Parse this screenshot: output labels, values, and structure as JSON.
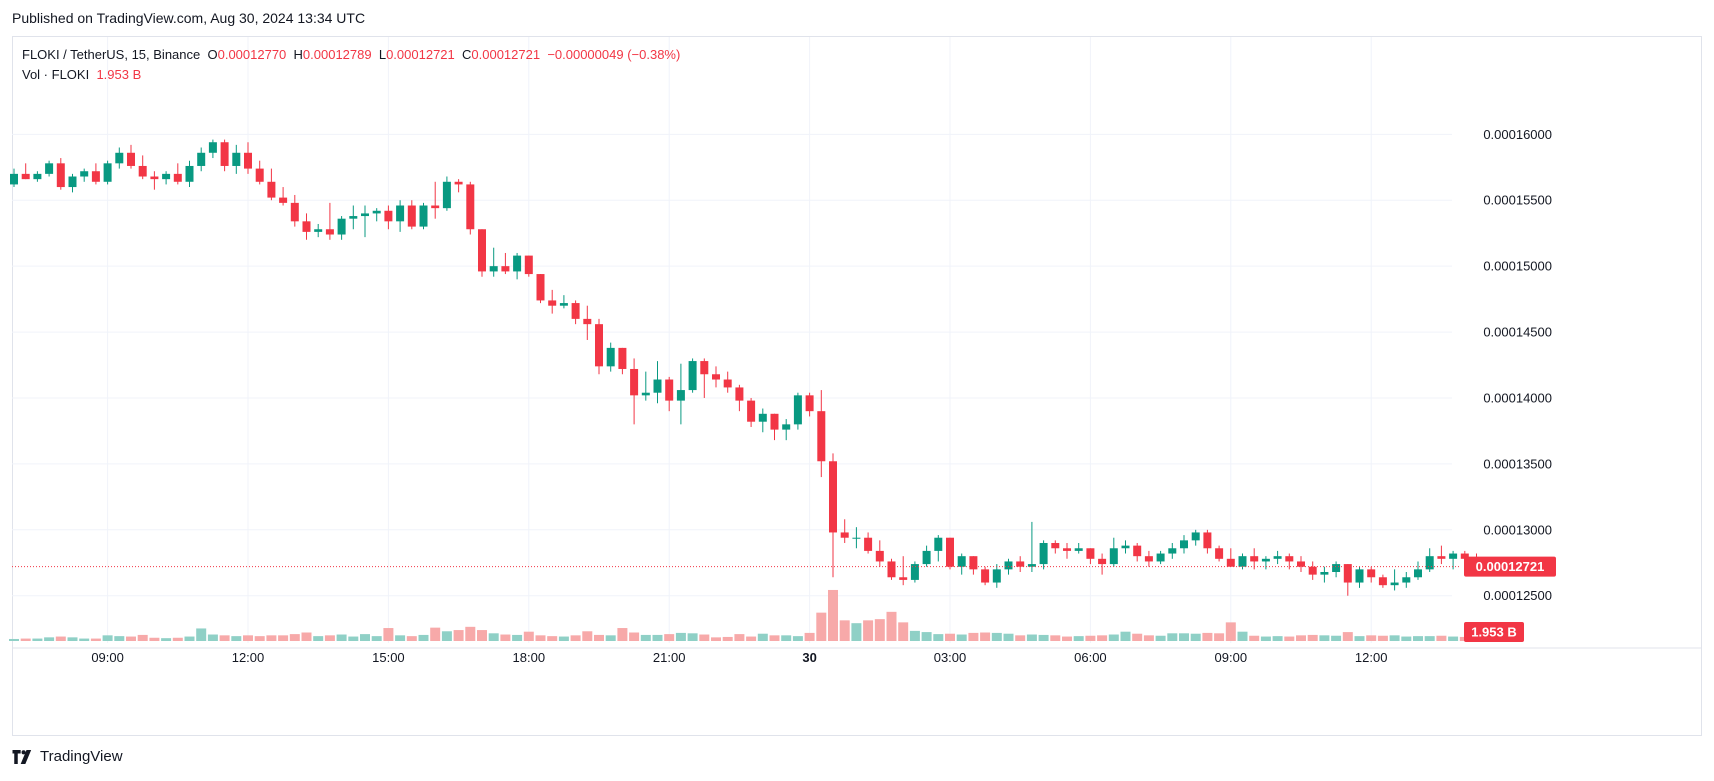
{
  "header": {
    "published": "Published on TradingView.com, Aug 30, 2024 13:34 UTC"
  },
  "legend": {
    "symbol": "FLOKI / TetherUS, 15, Binance",
    "o_label": "O",
    "o_value": "0.00012770",
    "h_label": "H",
    "h_value": "0.00012789",
    "l_label": "L",
    "l_value": "0.00012721",
    "c_label": "C",
    "c_value": "0.00012721",
    "change": "−0.00000049 (−0.38%)",
    "vol_label": "Vol · FLOKI",
    "vol_value": "1.953 B"
  },
  "brand": {
    "logo_icon": "tradingview-logo-icon",
    "name": "TradingView"
  },
  "colors": {
    "up": "#089981",
    "down": "#f23645",
    "vol_up": "#8fd0c6",
    "vol_down": "#f7a9a9",
    "grid": "#f0f3fa",
    "text": "#131722"
  },
  "chart_data": {
    "type": "candlestick",
    "symbol": "FLOKI / TetherUS",
    "interval": "15",
    "exchange": "Binance",
    "y_ticks": [
      "0.00016000",
      "0.00015500",
      "0.00015000",
      "0.00014500",
      "0.00014000",
      "0.00013500",
      "0.00013000",
      "0.00012500"
    ],
    "ylim": [
      0.0001224,
      0.0001645
    ],
    "x_ticks": [
      {
        "label": "09:00",
        "bar": 8
      },
      {
        "label": "12:00",
        "bar": 20
      },
      {
        "label": "15:00",
        "bar": 32
      },
      {
        "label": "18:00",
        "bar": 44
      },
      {
        "label": "21:00",
        "bar": 56
      },
      {
        "label": "30",
        "bar": 68
      },
      {
        "label": "03:00",
        "bar": 80
      },
      {
        "label": "06:00",
        "bar": 92
      },
      {
        "label": "09:00",
        "bar": 104
      },
      {
        "label": "12:00",
        "bar": 116
      }
    ],
    "last_price": "0.00012721",
    "last_volume": "1.953 B",
    "grid": true,
    "candles": [
      [
        0.0001562,
        0.0001574,
        0.000156,
        0.000157,
        0.25
      ],
      [
        0.000157,
        0.0001578,
        0.0001566,
        0.0001566,
        0.3
      ],
      [
        0.0001566,
        0.0001572,
        0.0001564,
        0.000157,
        0.3
      ],
      [
        0.000157,
        0.000158,
        0.0001568,
        0.0001578,
        0.45
      ],
      [
        0.0001578,
        0.0001582,
        0.0001558,
        0.000156,
        0.55
      ],
      [
        0.000156,
        0.000157,
        0.0001556,
        0.0001568,
        0.45
      ],
      [
        0.0001568,
        0.0001574,
        0.0001564,
        0.0001572,
        0.3
      ],
      [
        0.0001572,
        0.0001578,
        0.0001562,
        0.0001564,
        0.3
      ],
      [
        0.0001564,
        0.000158,
        0.0001562,
        0.0001578,
        0.7
      ],
      [
        0.0001578,
        0.000159,
        0.0001574,
        0.0001586,
        0.6
      ],
      [
        0.0001586,
        0.0001592,
        0.0001574,
        0.0001576,
        0.55
      ],
      [
        0.0001576,
        0.0001584,
        0.0001566,
        0.0001568,
        0.75
      ],
      [
        0.0001568,
        0.0001572,
        0.0001558,
        0.0001566,
        0.4
      ],
      [
        0.0001566,
        0.0001572,
        0.0001562,
        0.000157,
        0.35
      ],
      [
        0.000157,
        0.0001578,
        0.0001562,
        0.0001564,
        0.4
      ],
      [
        0.0001564,
        0.000158,
        0.000156,
        0.0001576,
        0.55
      ],
      [
        0.0001576,
        0.000159,
        0.0001572,
        0.0001586,
        1.55
      ],
      [
        0.0001586,
        0.0001596,
        0.0001582,
        0.0001594,
        0.8
      ],
      [
        0.0001594,
        0.0001596,
        0.0001572,
        0.0001576,
        0.7
      ],
      [
        0.0001576,
        0.0001592,
        0.000157,
        0.0001586,
        0.6
      ],
      [
        0.0001586,
        0.0001594,
        0.000157,
        0.0001574,
        0.7
      ],
      [
        0.0001574,
        0.000158,
        0.0001562,
        0.0001564,
        0.6
      ],
      [
        0.0001564,
        0.0001574,
        0.000155,
        0.0001552,
        0.7
      ],
      [
        0.0001552,
        0.000156,
        0.0001546,
        0.0001548,
        0.7
      ],
      [
        0.0001548,
        0.0001554,
        0.000153,
        0.0001534,
        0.85
      ],
      [
        0.0001534,
        0.000154,
        0.000152,
        0.0001526,
        1.05
      ],
      [
        0.0001526,
        0.0001532,
        0.0001522,
        0.0001528,
        0.6
      ],
      [
        0.0001528,
        0.0001548,
        0.000152,
        0.0001524,
        0.7
      ],
      [
        0.0001524,
        0.0001538,
        0.000152,
        0.0001536,
        0.8
      ],
      [
        0.0001536,
        0.0001546,
        0.0001528,
        0.0001538,
        0.55
      ],
      [
        0.0001538,
        0.0001546,
        0.0001522,
        0.000154,
        0.85
      ],
      [
        0.000154,
        0.0001544,
        0.0001534,
        0.0001542,
        0.6
      ],
      [
        0.0001542,
        0.0001546,
        0.0001528,
        0.0001534,
        1.6
      ],
      [
        0.0001534,
        0.000155,
        0.0001526,
        0.0001546,
        0.7
      ],
      [
        0.0001546,
        0.000155,
        0.0001528,
        0.000153,
        0.6
      ],
      [
        0.000153,
        0.0001548,
        0.0001528,
        0.0001546,
        0.75
      ],
      [
        0.0001546,
        0.0001564,
        0.0001536,
        0.0001544,
        1.65
      ],
      [
        0.0001544,
        0.0001568,
        0.0001542,
        0.0001564,
        1.2
      ],
      [
        0.0001564,
        0.0001566,
        0.0001556,
        0.0001562,
        1.35
      ],
      [
        0.0001562,
        0.0001564,
        0.0001524,
        0.0001528,
        1.75
      ],
      [
        0.0001528,
        0.0001528,
        0.0001492,
        0.0001496,
        1.35
      ],
      [
        0.0001496,
        0.0001514,
        0.0001492,
        0.00015,
        0.95
      ],
      [
        0.00015,
        0.000151,
        0.0001494,
        0.0001496,
        0.8
      ],
      [
        0.0001496,
        0.000151,
        0.000149,
        0.0001508,
        0.75
      ],
      [
        0.0001508,
        0.0001508,
        0.0001492,
        0.0001494,
        1.15
      ],
      [
        0.0001494,
        0.0001494,
        0.0001472,
        0.0001474,
        0.7
      ],
      [
        0.0001474,
        0.0001482,
        0.0001464,
        0.000147,
        0.6
      ],
      [
        0.000147,
        0.0001478,
        0.0001468,
        0.0001472,
        0.55
      ],
      [
        0.0001472,
        0.0001474,
        0.0001456,
        0.000146,
        0.7
      ],
      [
        0.000146,
        0.000147,
        0.0001444,
        0.0001456,
        1.2
      ],
      [
        0.0001456,
        0.000146,
        0.0001418,
        0.0001424,
        0.75
      ],
      [
        0.0001424,
        0.0001442,
        0.000142,
        0.0001438,
        0.7
      ],
      [
        0.0001438,
        0.0001438,
        0.0001418,
        0.0001422,
        1.6
      ],
      [
        0.0001422,
        0.000143,
        0.000138,
        0.0001402,
        1.05
      ],
      [
        0.0001402,
        0.000142,
        0.0001398,
        0.0001404,
        0.75
      ],
      [
        0.0001404,
        0.0001428,
        0.0001396,
        0.0001414,
        0.75
      ],
      [
        0.0001414,
        0.0001416,
        0.000139,
        0.0001398,
        0.85
      ],
      [
        0.0001398,
        0.0001426,
        0.000138,
        0.0001406,
        1.0
      ],
      [
        0.0001406,
        0.000143,
        0.0001404,
        0.0001428,
        0.95
      ],
      [
        0.0001428,
        0.000143,
        0.00014,
        0.0001418,
        0.8
      ],
      [
        0.0001418,
        0.0001424,
        0.0001408,
        0.0001414,
        0.45
      ],
      [
        0.0001414,
        0.000142,
        0.0001404,
        0.0001408,
        0.5
      ],
      [
        0.0001408,
        0.000141,
        0.000139,
        0.0001398,
        0.85
      ],
      [
        0.0001398,
        0.00014,
        0.0001378,
        0.0001382,
        0.55
      ],
      [
        0.0001382,
        0.0001392,
        0.0001374,
        0.0001388,
        0.9
      ],
      [
        0.0001388,
        0.0001388,
        0.0001368,
        0.0001376,
        0.7
      ],
      [
        0.0001376,
        0.0001384,
        0.0001368,
        0.000138,
        0.7
      ],
      [
        0.000138,
        0.0001404,
        0.0001376,
        0.0001402,
        0.6
      ],
      [
        0.0001402,
        0.0001404,
        0.0001386,
        0.000139,
        1.0
      ],
      [
        0.000139,
        0.0001406,
        0.000134,
        0.0001352,
        3.5
      ],
      [
        0.0001352,
        0.0001358,
        0.0001264,
        0.0001298,
        6.3
      ],
      [
        0.0001298,
        0.0001308,
        0.000129,
        0.0001294,
        2.55
      ],
      [
        0.0001294,
        0.0001302,
        0.0001286,
        0.0001294,
        2.2
      ],
      [
        0.0001294,
        0.0001298,
        0.0001282,
        0.0001284,
        2.55
      ],
      [
        0.0001284,
        0.0001292,
        0.0001272,
        0.0001276,
        2.7
      ],
      [
        0.0001276,
        0.0001278,
        0.0001262,
        0.0001264,
        3.6
      ],
      [
        0.0001264,
        0.000128,
        0.0001258,
        0.0001262,
        2.3
      ],
      [
        0.0001262,
        0.0001276,
        0.000126,
        0.0001274,
        1.25
      ],
      [
        0.0001274,
        0.0001288,
        0.0001272,
        0.0001284,
        1.1
      ],
      [
        0.0001284,
        0.0001296,
        0.0001276,
        0.0001294,
        0.85
      ],
      [
        0.0001294,
        0.0001294,
        0.000127,
        0.0001272,
        0.9
      ],
      [
        0.0001272,
        0.0001282,
        0.0001266,
        0.000128,
        0.8
      ],
      [
        0.000128,
        0.000128,
        0.0001266,
        0.000127,
        1.0
      ],
      [
        0.000127,
        0.0001272,
        0.0001258,
        0.000126,
        1.05
      ],
      [
        0.000126,
        0.0001274,
        0.0001256,
        0.000127,
        1.0
      ],
      [
        0.000127,
        0.0001278,
        0.0001266,
        0.0001276,
        0.9
      ],
      [
        0.0001276,
        0.000128,
        0.0001268,
        0.0001272,
        0.7
      ],
      [
        0.0001272,
        0.0001306,
        0.0001268,
        0.0001274,
        0.8
      ],
      [
        0.0001274,
        0.0001292,
        0.000127,
        0.000129,
        0.75
      ],
      [
        0.000129,
        0.0001292,
        0.0001282,
        0.0001286,
        0.7
      ],
      [
        0.0001286,
        0.000129,
        0.0001278,
        0.0001284,
        0.55
      ],
      [
        0.0001284,
        0.000129,
        0.0001282,
        0.0001286,
        0.6
      ],
      [
        0.0001286,
        0.0001286,
        0.0001274,
        0.0001278,
        0.65
      ],
      [
        0.0001278,
        0.0001282,
        0.0001266,
        0.0001274,
        0.7
      ],
      [
        0.0001274,
        0.0001294,
        0.0001272,
        0.0001286,
        0.8
      ],
      [
        0.0001286,
        0.0001292,
        0.0001282,
        0.0001288,
        1.15
      ],
      [
        0.0001288,
        0.000129,
        0.0001276,
        0.000128,
        0.9
      ],
      [
        0.000128,
        0.0001284,
        0.0001272,
        0.0001276,
        0.7
      ],
      [
        0.0001276,
        0.0001284,
        0.0001274,
        0.0001282,
        0.65
      ],
      [
        0.0001282,
        0.000129,
        0.0001278,
        0.0001286,
        0.95
      ],
      [
        0.0001286,
        0.0001296,
        0.0001282,
        0.0001292,
        0.95
      ],
      [
        0.0001292,
        0.00013,
        0.0001288,
        0.0001298,
        0.9
      ],
      [
        0.0001298,
        0.00013,
        0.0001282,
        0.0001286,
        1.0
      ],
      [
        0.0001286,
        0.0001288,
        0.0001276,
        0.0001278,
        0.95
      ],
      [
        0.0001278,
        0.0001286,
        0.0001272,
        0.0001272,
        2.3
      ],
      [
        0.0001272,
        0.0001282,
        0.000127,
        0.000128,
        1.15
      ],
      [
        0.000128,
        0.0001286,
        0.000127,
        0.0001276,
        0.65
      ],
      [
        0.0001276,
        0.000128,
        0.000127,
        0.0001278,
        0.55
      ],
      [
        0.0001278,
        0.0001284,
        0.0001274,
        0.000128,
        0.6
      ],
      [
        0.000128,
        0.0001282,
        0.000127,
        0.0001276,
        0.55
      ],
      [
        0.0001276,
        0.000128,
        0.0001268,
        0.0001272,
        0.7
      ],
      [
        0.0001272,
        0.0001276,
        0.0001262,
        0.0001266,
        0.75
      ],
      [
        0.0001266,
        0.0001272,
        0.000126,
        0.0001268,
        0.7
      ],
      [
        0.0001268,
        0.0001276,
        0.0001264,
        0.0001274,
        0.65
      ],
      [
        0.0001274,
        0.0001274,
        0.000125,
        0.000126,
        1.1
      ],
      [
        0.000126,
        0.0001272,
        0.0001256,
        0.000127,
        0.6
      ],
      [
        0.000127,
        0.0001272,
        0.000126,
        0.0001264,
        0.7
      ],
      [
        0.0001264,
        0.0001266,
        0.0001256,
        0.0001258,
        0.65
      ],
      [
        0.0001258,
        0.000127,
        0.0001254,
        0.000126,
        0.7
      ],
      [
        0.000126,
        0.0001268,
        0.0001256,
        0.0001264,
        0.55
      ],
      [
        0.0001264,
        0.0001276,
        0.0001262,
        0.000127,
        0.6
      ],
      [
        0.000127,
        0.0001286,
        0.0001268,
        0.000128,
        0.6
      ],
      [
        0.000128,
        0.0001288,
        0.0001274,
        0.0001278,
        0.65
      ],
      [
        0.0001278,
        0.0001284,
        0.000127,
        0.0001282,
        0.55
      ],
      [
        0.0001282,
        0.0001284,
        0.0001276,
        0.0001278,
        0.5
      ],
      [
        0.0001278,
        0.0001282,
        0.000127,
        0.0001272,
        0.3
      ]
    ]
  }
}
